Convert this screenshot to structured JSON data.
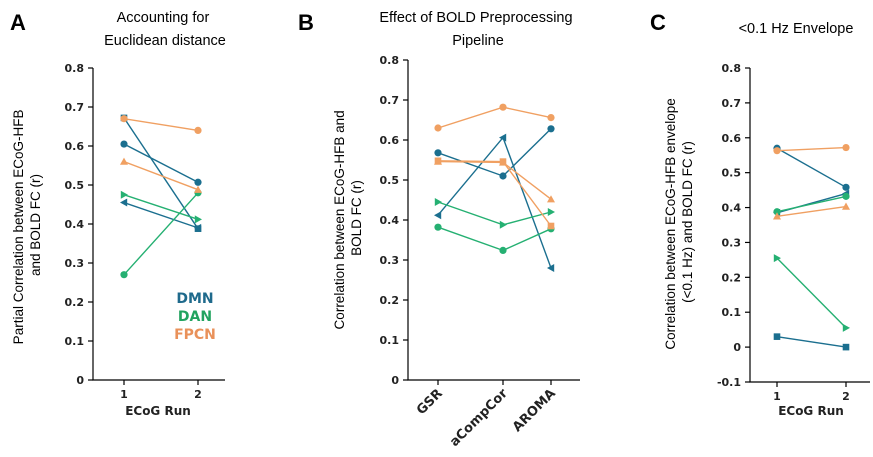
{
  "colors": {
    "DMN": "#1b6f8f",
    "DAN": "#25b072",
    "FPCN": "#f0a062",
    "DMN_legend": "#1f6a8c",
    "DAN_legend": "#22a35f",
    "FPCN_legend": "#e9915a"
  },
  "chart_data": [
    {
      "id": "A",
      "type": "line",
      "title": "Accounting for\nEuclidean distance",
      "ylabel": "Partial Correlation between ECoG-HFB\nand BOLD FC (r)",
      "xlabel": "ECoG Run",
      "categories": [
        "1",
        "2"
      ],
      "ylim": [
        0,
        0.8
      ],
      "yticks": [
        0,
        0.1,
        0.2,
        0.3,
        0.4,
        0.5,
        0.6,
        0.7,
        0.8
      ],
      "ytick_labels": [
        "0",
        "0.1",
        "0.2",
        "0.3",
        "0.4",
        "0.5",
        "0.6",
        "0.7",
        "0.8"
      ],
      "legend": {
        "placement": "lower-right",
        "entries": [
          "DMN",
          "DAN",
          "FPCN"
        ]
      },
      "series": [
        {
          "network": "DMN",
          "marker": "square",
          "values": [
            0.672,
            0.388
          ]
        },
        {
          "network": "DMN",
          "marker": "circle",
          "values": [
            0.605,
            0.507
          ]
        },
        {
          "network": "DMN",
          "marker": "triangle-left",
          "values": [
            0.455,
            0.39
          ]
        },
        {
          "network": "DAN",
          "marker": "circle",
          "values": [
            0.27,
            0.48
          ]
        },
        {
          "network": "DAN",
          "marker": "triangle-right",
          "values": [
            0.475,
            0.412
          ]
        },
        {
          "network": "FPCN",
          "marker": "circle",
          "values": [
            0.67,
            0.64
          ]
        },
        {
          "network": "FPCN",
          "marker": "triangle-up",
          "values": [
            0.56,
            0.488
          ]
        }
      ]
    },
    {
      "id": "B",
      "type": "line",
      "title": "Effect of BOLD Preprocessing\nPipeline",
      "ylabel": "Correlation between ECoG-HFB and\nBOLD FC (r)",
      "xlabel": "",
      "categories": [
        "GSR",
        "aCompCor",
        "AROMA"
      ],
      "ylim": [
        0,
        0.8
      ],
      "yticks": [
        0,
        0.1,
        0.2,
        0.3,
        0.4,
        0.5,
        0.6,
        0.7,
        0.8
      ],
      "ytick_labels": [
        "0",
        "0.1",
        "0.2",
        "0.3",
        "0.4",
        "0.5",
        "0.6",
        "0.7",
        "0.8"
      ],
      "series": [
        {
          "network": "DMN",
          "marker": "circle",
          "values": [
            0.568,
            0.51,
            0.628
          ]
        },
        {
          "network": "DMN",
          "marker": "triangle-left",
          "values": [
            0.412,
            0.606,
            0.28
          ]
        },
        {
          "network": "DAN",
          "marker": "circle",
          "values": [
            0.382,
            0.324,
            0.378
          ]
        },
        {
          "network": "DAN",
          "marker": "triangle-right",
          "values": [
            0.445,
            0.388,
            0.42
          ]
        },
        {
          "network": "FPCN",
          "marker": "circle",
          "values": [
            0.63,
            0.682,
            0.656
          ]
        },
        {
          "network": "FPCN",
          "marker": "square",
          "values": [
            0.548,
            0.546,
            0.385
          ]
        },
        {
          "network": "FPCN",
          "marker": "triangle-up",
          "values": [
            0.546,
            0.544,
            0.452
          ]
        }
      ]
    },
    {
      "id": "C",
      "type": "line",
      "title": "<0.1 Hz Envelope",
      "ylabel": "Correlation between ECoG-HFB envelope\n(<0.1 Hz) and BOLD FC (r)",
      "xlabel": "ECoG Run",
      "categories": [
        "1",
        "2"
      ],
      "ylim": [
        -0.1,
        0.8
      ],
      "yticks": [
        -0.1,
        0,
        0.1,
        0.2,
        0.3,
        0.4,
        0.5,
        0.6,
        0.7,
        0.8
      ],
      "ytick_labels": [
        "-0.1",
        "0",
        "0.1",
        "0.2",
        "0.3",
        "0.4",
        "0.5",
        "0.6",
        "0.7",
        "0.8"
      ],
      "series": [
        {
          "network": "DMN",
          "marker": "circle",
          "values": [
            0.57,
            0.458
          ]
        },
        {
          "network": "DMN",
          "marker": "square",
          "values": [
            0.03,
            0.0
          ]
        },
        {
          "network": "DMN",
          "marker": "triangle-left",
          "values": [
            0.385,
            0.44
          ]
        },
        {
          "network": "DAN",
          "marker": "circle",
          "values": [
            0.388,
            0.432
          ]
        },
        {
          "network": "DAN",
          "marker": "triangle-right",
          "values": [
            0.255,
            0.055
          ]
        },
        {
          "network": "FPCN",
          "marker": "circle",
          "values": [
            0.563,
            0.572
          ]
        },
        {
          "network": "FPCN",
          "marker": "triangle-up",
          "values": [
            0.375,
            0.403
          ]
        }
      ]
    }
  ]
}
